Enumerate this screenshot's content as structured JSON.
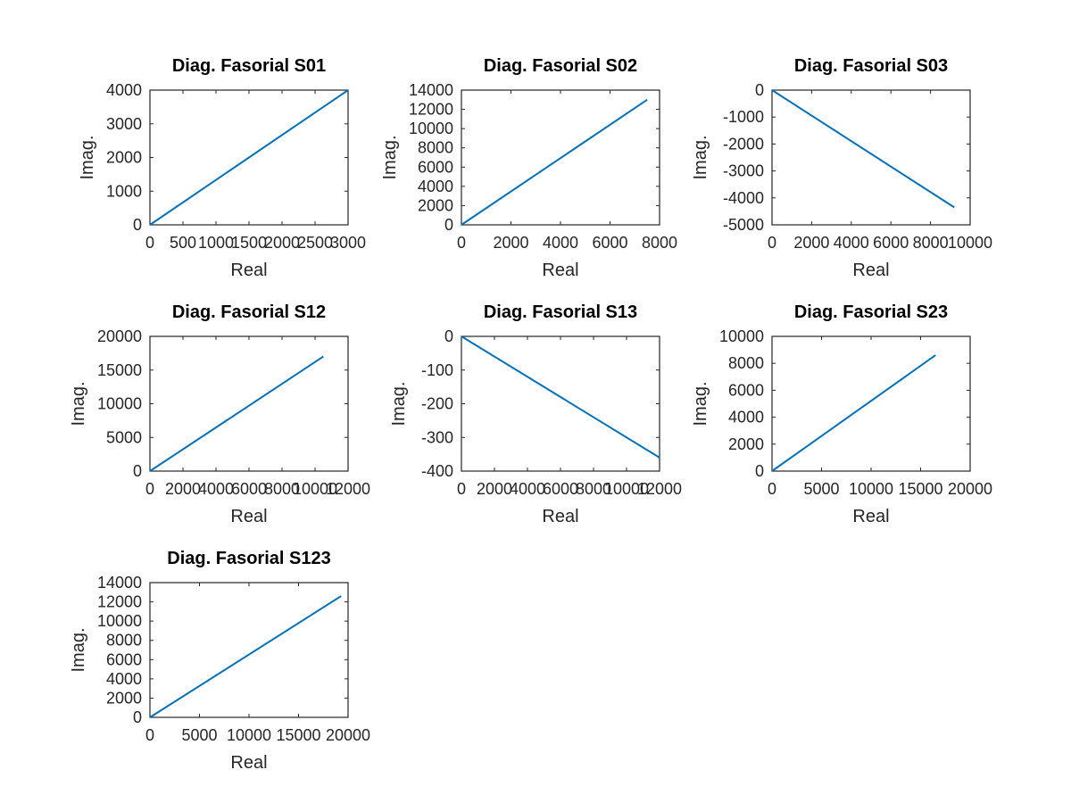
{
  "chart_data": [
    {
      "type": "line",
      "title": "Diag. Fasorial S01",
      "xlabel": "Real",
      "ylabel": "Imag.",
      "xlim": [
        0,
        3000
      ],
      "ylim": [
        0,
        4000
      ],
      "xticks": [
        0,
        500,
        1000,
        1500,
        2000,
        2500,
        3000
      ],
      "xticklabels": [
        "0",
        "500",
        "1000",
        "1500",
        "2000",
        "2500",
        "3000"
      ],
      "yticks": [
        0,
        1000,
        2000,
        3000,
        4000
      ],
      "yticklabels": [
        "0",
        "1000",
        "2000",
        "3000",
        "4000"
      ],
      "color": "#0072BD",
      "series": [
        {
          "x": [
            0,
            3000
          ],
          "y": [
            0,
            4000
          ]
        }
      ]
    },
    {
      "type": "line",
      "title": "Diag. Fasorial S02",
      "xlabel": "Real",
      "ylabel": "Imag.",
      "xlim": [
        0,
        8000
      ],
      "ylim": [
        0,
        14000
      ],
      "xticks": [
        0,
        2000,
        4000,
        6000,
        8000
      ],
      "xticklabels": [
        "0",
        "2000",
        "4000",
        "6000",
        "8000"
      ],
      "yticks": [
        0,
        2000,
        4000,
        6000,
        8000,
        10000,
        12000,
        14000
      ],
      "yticklabels": [
        "0",
        "2000",
        "4000",
        "6000",
        "8000",
        "10000",
        "12000",
        "14000"
      ],
      "color": "#0072BD",
      "series": [
        {
          "x": [
            0,
            7500
          ],
          "y": [
            0,
            13000
          ]
        }
      ]
    },
    {
      "type": "line",
      "title": "Diag. Fasorial S03",
      "xlabel": "Real",
      "ylabel": "Imag.",
      "xlim": [
        0,
        10000
      ],
      "ylim": [
        -5000,
        0
      ],
      "xticks": [
        0,
        2000,
        4000,
        6000,
        8000,
        10000
      ],
      "xticklabels": [
        "0",
        "2000",
        "4000",
        "6000",
        "8000",
        "10000"
      ],
      "yticks": [
        -5000,
        -4000,
        -3000,
        -2000,
        -1000,
        0
      ],
      "yticklabels": [
        "-5000",
        "-4000",
        "-3000",
        "-2000",
        "-1000",
        "0"
      ],
      "color": "#0072BD",
      "series": [
        {
          "x": [
            0,
            9200
          ],
          "y": [
            0,
            -4350
          ]
        }
      ]
    },
    {
      "type": "line",
      "title": "Diag. Fasorial S12",
      "xlabel": "Real",
      "ylabel": "Imag.",
      "xlim": [
        0,
        12000
      ],
      "ylim": [
        0,
        20000
      ],
      "xticks": [
        0,
        2000,
        4000,
        6000,
        8000,
        10000,
        12000
      ],
      "xticklabels": [
        "0",
        "2000",
        "4000",
        "6000",
        "8000",
        "10000",
        "12000"
      ],
      "yticks": [
        0,
        5000,
        10000,
        15000,
        20000
      ],
      "yticklabels": [
        "0",
        "5000",
        "10000",
        "15000",
        "20000"
      ],
      "color": "#0072BD",
      "series": [
        {
          "x": [
            0,
            10500
          ],
          "y": [
            0,
            17000
          ]
        }
      ]
    },
    {
      "type": "line",
      "title": "Diag. Fasorial S13",
      "xlabel": "Real",
      "ylabel": "Imag.",
      "xlim": [
        0,
        12000
      ],
      "ylim": [
        -400,
        0
      ],
      "xticks": [
        0,
        2000,
        4000,
        6000,
        8000,
        10000,
        12000
      ],
      "xticklabels": [
        "0",
        "2000",
        "4000",
        "6000",
        "8000",
        "10000",
        "12000"
      ],
      "yticks": [
        -400,
        -300,
        -200,
        -100,
        0
      ],
      "yticklabels": [
        "-400",
        "-300",
        "-200",
        "-100",
        "0"
      ],
      "color": "#0072BD",
      "series": [
        {
          "x": [
            0,
            12000
          ],
          "y": [
            0,
            -360
          ]
        }
      ]
    },
    {
      "type": "line",
      "title": "Diag. Fasorial S23",
      "xlabel": "Real",
      "ylabel": "Imag.",
      "xlim": [
        0,
        20000
      ],
      "ylim": [
        0,
        10000
      ],
      "xticks": [
        0,
        5000,
        10000,
        15000,
        20000
      ],
      "xticklabels": [
        "0",
        "5000",
        "10000",
        "15000",
        "20000"
      ],
      "yticks": [
        0,
        2000,
        4000,
        6000,
        8000,
        10000
      ],
      "yticklabels": [
        "0",
        "2000",
        "4000",
        "6000",
        "8000",
        "10000"
      ],
      "color": "#0072BD",
      "series": [
        {
          "x": [
            0,
            16500
          ],
          "y": [
            0,
            8600
          ]
        }
      ]
    },
    {
      "type": "line",
      "title": "Diag. Fasorial S123",
      "xlabel": "Real",
      "ylabel": "Imag.",
      "xlim": [
        0,
        20000
      ],
      "ylim": [
        0,
        14000
      ],
      "xticks": [
        0,
        5000,
        10000,
        15000,
        20000
      ],
      "xticklabels": [
        "0",
        "5000",
        "10000",
        "15000",
        "20000"
      ],
      "yticks": [
        0,
        2000,
        4000,
        6000,
        8000,
        10000,
        12000,
        14000
      ],
      "yticklabels": [
        "0",
        "2000",
        "4000",
        "6000",
        "8000",
        "10000",
        "12000",
        "14000"
      ],
      "color": "#0072BD",
      "series": [
        {
          "x": [
            0,
            19300
          ],
          "y": [
            0,
            12600
          ]
        }
      ]
    }
  ]
}
